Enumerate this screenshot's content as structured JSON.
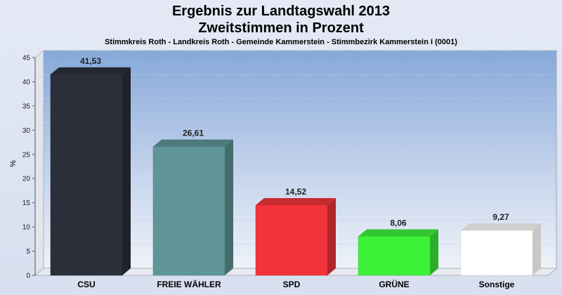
{
  "chart_data": {
    "type": "bar",
    "title": "Ergebnis zur Landtagswahl 2013",
    "subtitle": "Zweitstimmen in Prozent",
    "caption": "Stimmkreis Roth - Landkreis Roth - Gemeinde Kammerstein - Stimmbezirk Kammerstein I (0001)",
    "ylabel": "%",
    "xlabel": "",
    "ylim": [
      0,
      45
    ],
    "yticks": [
      0,
      5,
      10,
      15,
      20,
      25,
      30,
      35,
      40,
      45
    ],
    "grid": true,
    "categories": [
      "CSU",
      "FREIE WÄHLER",
      "SPD",
      "GRÜNE",
      "Sonstige"
    ],
    "values": [
      41.53,
      26.61,
      14.52,
      8.06,
      9.27
    ],
    "value_labels": [
      "41,53",
      "26,61",
      "14,52",
      "8,06",
      "9,27"
    ],
    "colors": [
      "#2b2f3a",
      "#5f9596",
      "#f2343a",
      "#3ef23a",
      "#ffffff"
    ]
  }
}
